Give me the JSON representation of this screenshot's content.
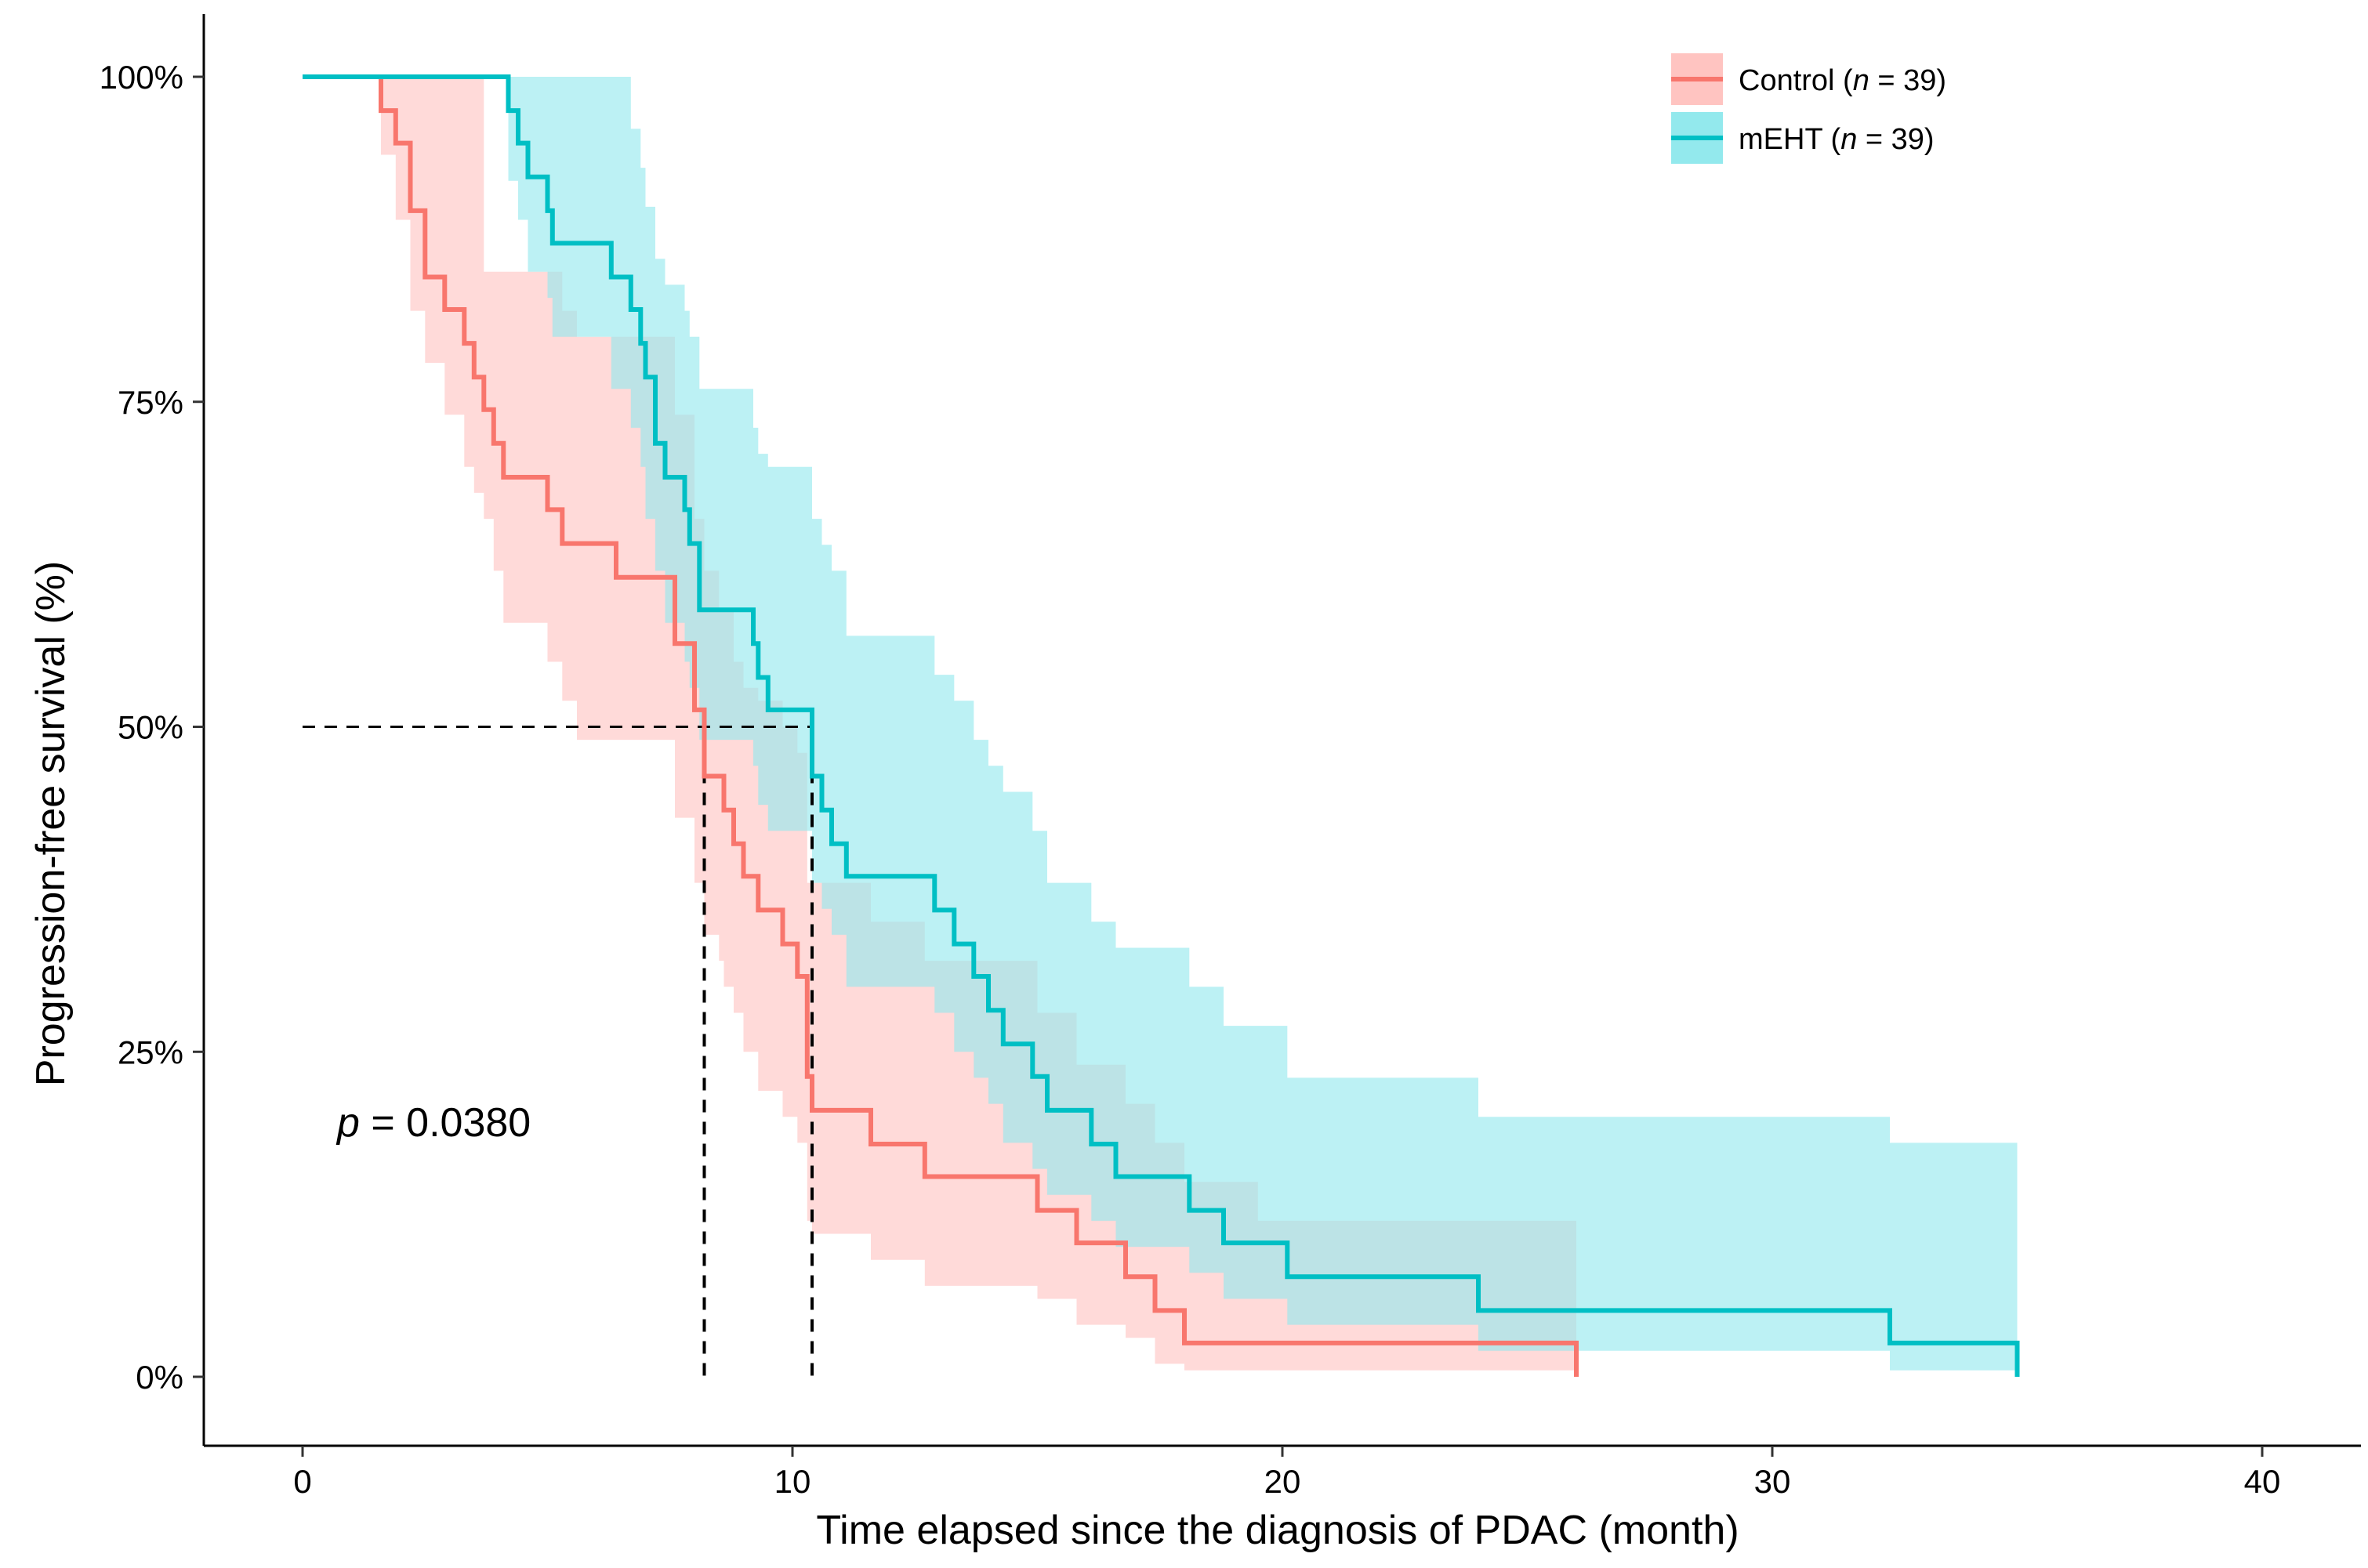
{
  "chart_data": {
    "type": "line",
    "xlabel": "Time elapsed since the diagnosis of PDAC (month)",
    "ylabel": "Progression-free survival (%)",
    "xlim": [
      -2,
      42
    ],
    "ylim": [
      -5,
      105
    ],
    "x_ticks": [
      0,
      10,
      20,
      30,
      40
    ],
    "y_ticks": [
      0,
      25,
      50,
      75,
      100
    ],
    "y_tick_labels": [
      "0%",
      "25%",
      "50%",
      "75%",
      "100%"
    ],
    "grid": false,
    "legend_position": "top-right",
    "annotation": {
      "p_prefix": "p",
      "p_value": " = 0.0380"
    },
    "median_reference_line": 50,
    "medians": [
      8.2,
      10.4
    ],
    "series": [
      {
        "name": "Control",
        "legend_label": {
          "prefix": "Control (",
          "n_symbol": "n",
          "suffix": " = 39)"
        },
        "color": "#F8766D",
        "band_color": "#FFC4C1",
        "x": [
          0,
          1.6,
          1.9,
          2.2,
          2.5,
          2.9,
          3.3,
          3.5,
          3.7,
          3.9,
          4.1,
          5.0,
          5.3,
          5.6,
          6.4,
          6.9,
          7.6,
          8.0,
          8.2,
          8.5,
          8.6,
          8.8,
          9.0,
          9.3,
          9.8,
          10.1,
          10.3,
          10.4,
          11.6,
          12.7,
          13.8,
          15.0,
          15.8,
          16.3,
          16.8,
          17.4,
          18.0,
          18.3,
          19.5,
          24.3,
          26.0
        ],
        "y": [
          100,
          97.4,
          94.9,
          89.7,
          84.6,
          82.1,
          79.5,
          76.9,
          74.4,
          71.8,
          69.2,
          66.7,
          64.1,
          64.1,
          61.5,
          61.5,
          56.4,
          51.3,
          46.2,
          46.2,
          43.6,
          41.0,
          38.5,
          35.9,
          33.3,
          30.8,
          23.1,
          20.5,
          17.9,
          15.4,
          15.4,
          12.8,
          10.3,
          10.3,
          7.7,
          5.1,
          2.6,
          2.6,
          2.6,
          2.6,
          0
        ],
        "ci_upper": [
          100,
          100,
          100,
          100,
          100,
          100,
          100,
          100,
          85,
          85,
          85,
          85,
          82,
          80,
          80,
          80,
          74,
          66,
          62,
          59,
          59,
          55,
          53,
          52,
          50,
          48,
          38,
          38,
          35,
          32,
          32,
          28,
          24,
          24,
          21,
          18,
          15,
          15,
          12,
          12,
          12
        ],
        "ci_lower": [
          100,
          94,
          89,
          82,
          78,
          74,
          70,
          68,
          66,
          62,
          58,
          55,
          52,
          49,
          49,
          49,
          43,
          38,
          34,
          32,
          30,
          28,
          25,
          22,
          20,
          18,
          12,
          11,
          9,
          7,
          7,
          6,
          4,
          4,
          3,
          1,
          0.5,
          0.5,
          0.5,
          0.5,
          0
        ]
      },
      {
        "name": "mEHT",
        "legend_label": {
          "prefix": "mEHT (",
          "n_symbol": "n",
          "suffix": " = 39)"
        },
        "color": "#00BFC4",
        "band_color": "#93E9ED",
        "x": [
          0,
          4.2,
          4.4,
          4.6,
          5.0,
          5.1,
          5.6,
          6.3,
          6.7,
          6.9,
          7.0,
          7.2,
          7.4,
          7.8,
          7.9,
          8.1,
          9.2,
          9.3,
          9.5,
          10.4,
          10.6,
          10.8,
          11.1,
          12.9,
          13.3,
          13.7,
          14.0,
          14.3,
          14.9,
          15.2,
          16.1,
          16.6,
          16.9,
          18.1,
          18.8,
          20.1,
          22.3,
          24.0,
          27.0,
          32.4,
          35.0
        ],
        "y": [
          100,
          97.4,
          94.9,
          92.3,
          89.7,
          87.2,
          87.2,
          84.6,
          82.1,
          79.5,
          76.9,
          71.8,
          69.2,
          66.7,
          64.1,
          59.0,
          56.4,
          53.8,
          51.3,
          46.2,
          43.6,
          41.0,
          38.5,
          35.9,
          33.3,
          30.8,
          28.2,
          25.6,
          23.1,
          20.5,
          17.9,
          15.4,
          15.4,
          12.8,
          10.3,
          7.7,
          7.7,
          5.1,
          5.1,
          2.6,
          0
        ],
        "ci_upper": [
          100,
          100,
          100,
          100,
          100,
          100,
          100,
          100,
          96,
          93,
          90,
          86,
          84,
          82,
          80,
          76,
          73,
          71,
          70,
          66,
          64,
          62,
          57,
          54,
          52,
          49,
          47,
          45,
          42,
          38,
          35,
          33,
          33,
          30,
          27,
          23,
          23,
          20,
          20,
          18,
          18
        ],
        "ci_lower": [
          100,
          92,
          89,
          85,
          83,
          80,
          80,
          76,
          73,
          70,
          66,
          62,
          58,
          55,
          53,
          49,
          47,
          44,
          42,
          38,
          36,
          34,
          30,
          28,
          25,
          23,
          21,
          18,
          16,
          14,
          12,
          10,
          10,
          8,
          6,
          4,
          4,
          2,
          2,
          0.5,
          0.5
        ]
      }
    ]
  }
}
